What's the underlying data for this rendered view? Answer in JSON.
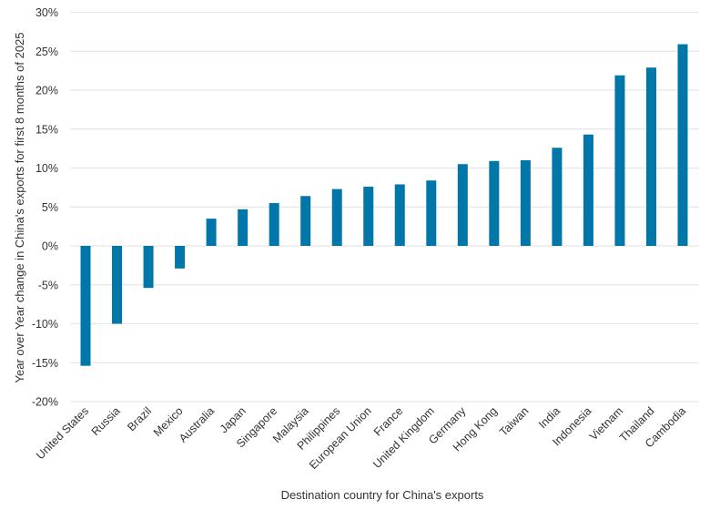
{
  "chart_data": {
    "type": "bar",
    "title": "",
    "xlabel": "Destination country for China's exports",
    "ylabel": "Year over Year change in China's exports for first 8 months of 2025",
    "ylim": [
      -20,
      30
    ],
    "yticks": [
      -20,
      -15,
      -10,
      -5,
      0,
      5,
      10,
      15,
      20,
      25,
      30
    ],
    "ytick_labels": [
      "-20%",
      "-15%",
      "-10%",
      "-5%",
      "0%",
      "5%",
      "10%",
      "15%",
      "20%",
      "25%",
      "30%"
    ],
    "grid": true,
    "legend": "none",
    "bar_color": "#0077A8",
    "categories": [
      "United States",
      "Russia",
      "Brazil",
      "Mexico",
      "Australia",
      "Japan",
      "Singapore",
      "Malaysia",
      "Philippines",
      "European Union",
      "France",
      "United Kingdom",
      "Germany",
      "Hong Kong",
      "Taiwan",
      "India",
      "Indonesia",
      "Vietnam",
      "Thailand",
      "Cambodia"
    ],
    "values": [
      -15.4,
      -10.0,
      -5.4,
      -2.9,
      3.5,
      4.7,
      5.5,
      6.4,
      7.3,
      7.6,
      7.9,
      8.4,
      10.5,
      10.9,
      11.0,
      12.6,
      14.3,
      21.9,
      22.9,
      25.9
    ]
  }
}
